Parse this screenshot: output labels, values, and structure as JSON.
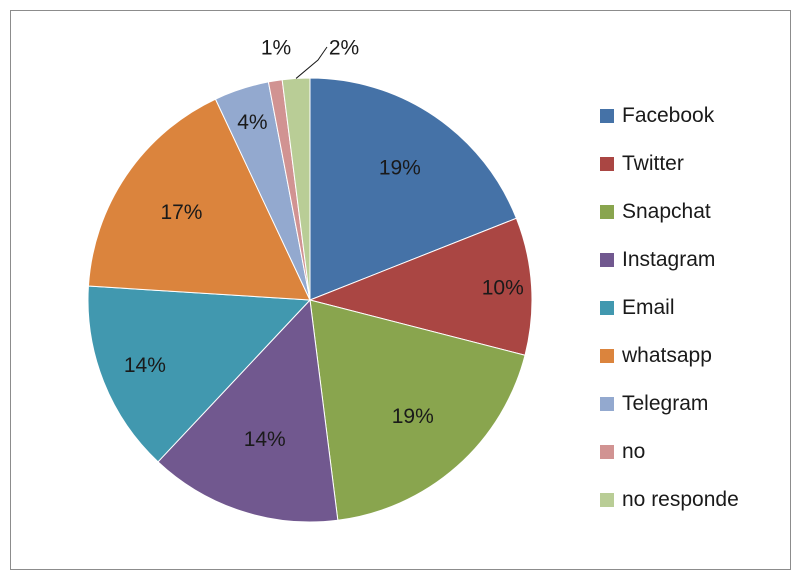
{
  "chart_data": {
    "type": "pie",
    "title": "",
    "series": [
      {
        "name": "Facebook",
        "value": 19,
        "label": "19%",
        "color": "#4572A7"
      },
      {
        "name": "Twitter",
        "value": 10,
        "label": "10%",
        "color": "#AA4643"
      },
      {
        "name": "Snapchat",
        "value": 19,
        "label": "19%",
        "color": "#89A54E"
      },
      {
        "name": "Instagram",
        "value": 14,
        "label": "14%",
        "color": "#71588F"
      },
      {
        "name": "Email",
        "value": 14,
        "label": "14%",
        "color": "#4198AF"
      },
      {
        "name": "whatsapp",
        "value": 17,
        "label": "17%",
        "color": "#DB843D"
      },
      {
        "name": "Telegram",
        "value": 4,
        "label": "4%",
        "color": "#93A9CF"
      },
      {
        "name": "no",
        "value": 1,
        "label": "1%",
        "color": "#D19392"
      },
      {
        "name": "no responde",
        "value": 2,
        "label": "2%",
        "color": "#B9CD96"
      }
    ],
    "legend_position": "right"
  }
}
